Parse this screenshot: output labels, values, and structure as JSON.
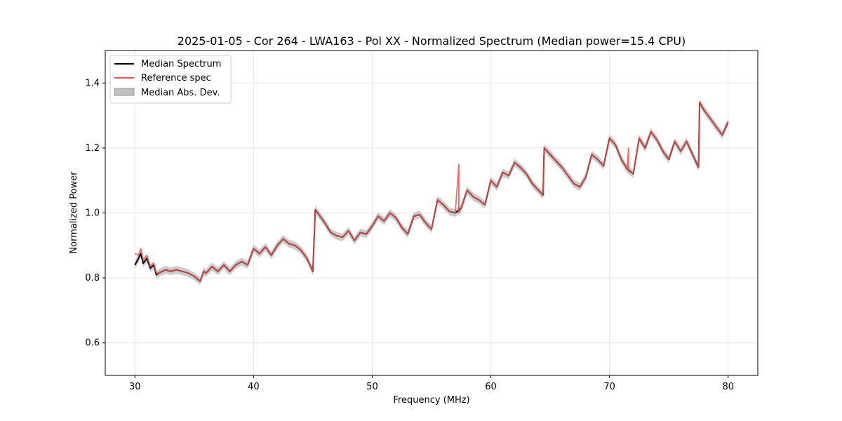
{
  "chart_data": {
    "type": "line",
    "title": "2025-01-05 - Cor 264 - LWA163 - Pol XX - Normalized Spectrum (Median power=15.4 CPU)",
    "xlabel": "Frequency (MHz)",
    "ylabel": "Normalized Power",
    "xlim": [
      27.5,
      82.5
    ],
    "ylim": [
      0.5,
      1.5
    ],
    "xticks": [
      30,
      40,
      50,
      60,
      70,
      80
    ],
    "yticks": [
      0.6,
      0.8,
      1.0,
      1.2,
      1.4
    ],
    "xtick_labels": [
      "30",
      "40",
      "50",
      "60",
      "70",
      "80"
    ],
    "ytick_labels": [
      "0.6",
      "0.8",
      "1.0",
      "1.2",
      "1.4"
    ],
    "grid": true,
    "legend_position": "top-left",
    "series": [
      {
        "name": "Median Spectrum",
        "color": "#000000",
        "x": [
          30.0,
          30.3,
          30.5,
          30.7,
          31.0,
          31.3,
          31.6,
          31.8,
          32.0,
          32.3,
          32.6,
          33.0,
          33.5,
          34.0,
          34.5,
          35.0,
          35.5,
          35.8,
          36.0,
          36.5,
          37.0,
          37.5,
          38.0,
          38.5,
          39.0,
          39.5,
          40.0,
          40.5,
          41.0,
          41.5,
          42.0,
          42.5,
          43.0,
          43.5,
          44.0,
          44.5,
          45.0,
          45.2,
          45.5,
          46.0,
          46.5,
          47.0,
          47.5,
          48.0,
          48.5,
          49.0,
          49.5,
          50.0,
          50.5,
          51.0,
          51.5,
          52.0,
          52.5,
          53.0,
          53.5,
          54.0,
          54.5,
          55.0,
          55.5,
          56.0,
          56.5,
          57.0,
          57.5,
          58.0,
          58.5,
          59.0,
          59.5,
          60.0,
          60.5,
          61.0,
          61.5,
          62.0,
          62.5,
          63.0,
          63.5,
          64.0,
          64.4,
          64.5,
          65.0,
          65.5,
          66.0,
          66.5,
          67.0,
          67.5,
          68.0,
          68.5,
          69.0,
          69.5,
          70.0,
          70.5,
          71.0,
          71.5,
          72.0,
          72.5,
          73.0,
          73.5,
          74.0,
          74.5,
          75.0,
          75.5,
          76.0,
          76.5,
          77.0,
          77.5,
          77.6,
          78.0,
          78.5,
          79.0,
          79.5,
          80.0
        ],
        "y": [
          0.84,
          0.86,
          0.875,
          0.845,
          0.86,
          0.83,
          0.84,
          0.81,
          0.815,
          0.82,
          0.825,
          0.82,
          0.825,
          0.82,
          0.815,
          0.805,
          0.79,
          0.82,
          0.815,
          0.835,
          0.82,
          0.84,
          0.82,
          0.84,
          0.85,
          0.84,
          0.89,
          0.875,
          0.895,
          0.87,
          0.9,
          0.92,
          0.905,
          0.9,
          0.885,
          0.86,
          0.82,
          1.01,
          0.995,
          0.97,
          0.94,
          0.93,
          0.925,
          0.945,
          0.915,
          0.94,
          0.935,
          0.96,
          0.99,
          0.975,
          1.0,
          0.985,
          0.955,
          0.935,
          0.99,
          0.995,
          0.97,
          0.95,
          1.04,
          1.025,
          1.005,
          1.0,
          1.015,
          1.07,
          1.05,
          1.04,
          1.025,
          1.1,
          1.08,
          1.125,
          1.115,
          1.155,
          1.14,
          1.12,
          1.09,
          1.07,
          1.055,
          1.2,
          1.18,
          1.16,
          1.14,
          1.115,
          1.09,
          1.08,
          1.11,
          1.18,
          1.165,
          1.145,
          1.23,
          1.21,
          1.165,
          1.135,
          1.12,
          1.23,
          1.2,
          1.25,
          1.225,
          1.19,
          1.165,
          1.22,
          1.19,
          1.22,
          1.18,
          1.14,
          1.34,
          1.315,
          1.29,
          1.265,
          1.24,
          1.28
        ]
      },
      {
        "name": "Reference spec",
        "color": "#f05050",
        "x": [
          30.0,
          30.3,
          30.5,
          30.7,
          31.0,
          31.3,
          31.6,
          31.8,
          32.0,
          32.3,
          32.6,
          33.0,
          33.5,
          34.0,
          34.5,
          35.0,
          35.5,
          35.8,
          36.0,
          36.5,
          37.0,
          37.5,
          38.0,
          38.5,
          39.0,
          39.5,
          40.0,
          40.5,
          41.0,
          41.5,
          42.0,
          42.5,
          43.0,
          43.5,
          44.0,
          44.5,
          45.0,
          45.2,
          45.5,
          46.0,
          46.5,
          47.0,
          47.5,
          48.0,
          48.5,
          49.0,
          49.5,
          50.0,
          50.5,
          51.0,
          51.5,
          52.0,
          52.5,
          53.0,
          53.5,
          54.0,
          54.5,
          55.0,
          55.5,
          56.0,
          56.5,
          57.0,
          57.3,
          57.3,
          57.5,
          58.0,
          58.5,
          59.0,
          59.5,
          60.0,
          60.5,
          61.0,
          61.5,
          62.0,
          62.5,
          63.0,
          63.5,
          64.0,
          64.4,
          64.5,
          65.0,
          65.5,
          66.0,
          66.5,
          67.0,
          67.5,
          68.0,
          68.5,
          69.0,
          69.5,
          70.0,
          70.5,
          71.0,
          71.5,
          71.6,
          71.6,
          72.0,
          72.5,
          73.0,
          73.5,
          74.0,
          74.5,
          75.0,
          75.5,
          76.0,
          76.5,
          77.0,
          77.5,
          77.6,
          78.0,
          78.5,
          79.0,
          79.5,
          80.0
        ],
        "y": [
          0.875,
          0.87,
          0.89,
          0.855,
          0.87,
          0.835,
          0.845,
          0.815,
          0.815,
          0.82,
          0.825,
          0.82,
          0.825,
          0.82,
          0.815,
          0.805,
          0.79,
          0.82,
          0.815,
          0.835,
          0.82,
          0.84,
          0.82,
          0.84,
          0.85,
          0.84,
          0.89,
          0.875,
          0.895,
          0.87,
          0.9,
          0.92,
          0.905,
          0.9,
          0.885,
          0.86,
          0.82,
          1.01,
          0.995,
          0.97,
          0.94,
          0.93,
          0.925,
          0.945,
          0.915,
          0.94,
          0.935,
          0.96,
          0.99,
          0.975,
          1.0,
          0.985,
          0.955,
          0.935,
          0.99,
          0.995,
          0.97,
          0.95,
          1.04,
          1.025,
          1.005,
          1.0,
          1.15,
          1.0,
          1.015,
          1.07,
          1.05,
          1.04,
          1.025,
          1.1,
          1.08,
          1.125,
          1.115,
          1.155,
          1.14,
          1.12,
          1.09,
          1.07,
          1.055,
          1.2,
          1.18,
          1.16,
          1.14,
          1.115,
          1.09,
          1.08,
          1.11,
          1.18,
          1.165,
          1.145,
          1.23,
          1.21,
          1.165,
          1.135,
          1.2,
          1.13,
          1.12,
          1.23,
          1.2,
          1.25,
          1.225,
          1.19,
          1.165,
          1.22,
          1.19,
          1.22,
          1.18,
          1.14,
          1.34,
          1.315,
          1.29,
          1.265,
          1.24,
          1.28
        ]
      },
      {
        "name": "Median Abs. Dev.",
        "color": "#bfbfbf",
        "type": "band",
        "half_width": 0.012
      }
    ]
  }
}
